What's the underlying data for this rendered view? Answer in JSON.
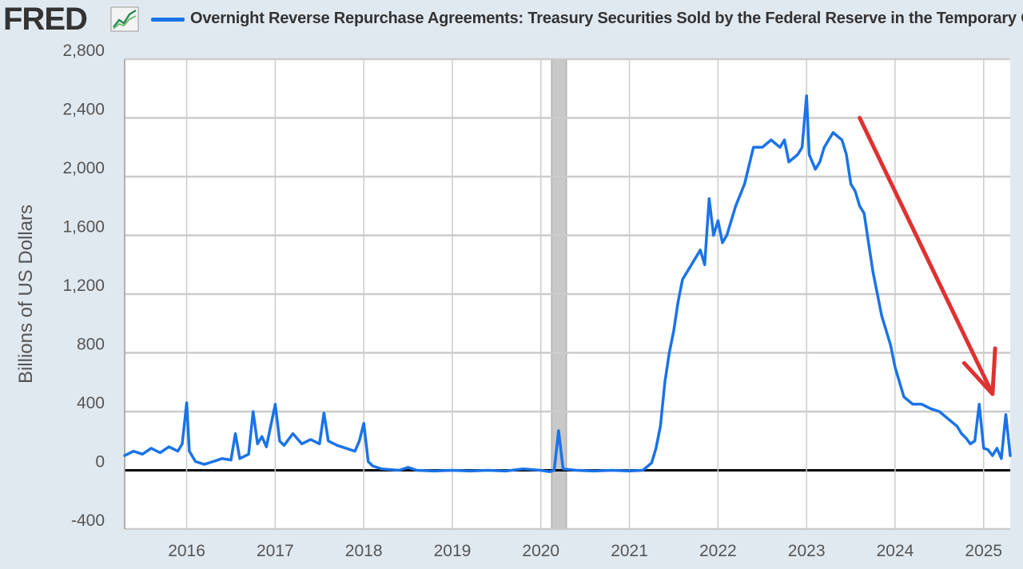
{
  "header": {
    "logo_text": "FRED",
    "logo_icon": "line-chart-icon",
    "title": "Overnight Reverse Repurchase Agreements: Treasury Securities Sold by the Federal Reserve in the Temporary Open Market Operations"
  },
  "colors": {
    "series": "#1a73e8",
    "annotation_arrow": "#e03131",
    "recession_band": "#c8c8c8",
    "gridline": "#cccccc",
    "zero_line": "#000000",
    "plot_background": "#ffffff",
    "page_background": "#e1e9f0"
  },
  "chart_data": {
    "type": "line",
    "title": "Overnight Reverse Repurchase Agreements: Treasury Securities Sold by the Federal Reserve in the Temporary Open Market Operations",
    "ylabel": "Billions of US Dollars",
    "xlabel": "",
    "xlim": [
      2015.3,
      2025.3
    ],
    "ylim": [
      -400,
      2800
    ],
    "x_ticks": [
      "2016",
      "2017",
      "2018",
      "2019",
      "2020",
      "2021",
      "2022",
      "2023",
      "2024",
      "2025"
    ],
    "y_ticks": [
      "2,800",
      "2,400",
      "2,000",
      "1,600",
      "1,200",
      "800",
      "400",
      "0",
      "-400"
    ],
    "grid": true,
    "recession_shading": [
      [
        2020.12,
        2020.29
      ]
    ],
    "annotation": "red downward arrow from mid-2023 to early 2025",
    "series": [
      {
        "values": [
          [
            2015.3,
            100
          ],
          [
            2015.4,
            130
          ],
          [
            2015.5,
            110
          ],
          [
            2015.6,
            150
          ],
          [
            2015.7,
            120
          ],
          [
            2015.8,
            160
          ],
          [
            2015.9,
            130
          ],
          [
            2015.95,
            180
          ],
          [
            2016.0,
            460
          ],
          [
            2016.03,
            130
          ],
          [
            2016.1,
            60
          ],
          [
            2016.2,
            40
          ],
          [
            2016.3,
            60
          ],
          [
            2016.4,
            80
          ],
          [
            2016.5,
            70
          ],
          [
            2016.55,
            250
          ],
          [
            2016.6,
            80
          ],
          [
            2016.7,
            110
          ],
          [
            2016.75,
            400
          ],
          [
            2016.8,
            180
          ],
          [
            2016.85,
            230
          ],
          [
            2016.9,
            160
          ],
          [
            2017.0,
            450
          ],
          [
            2017.05,
            200
          ],
          [
            2017.1,
            170
          ],
          [
            2017.2,
            250
          ],
          [
            2017.3,
            180
          ],
          [
            2017.4,
            210
          ],
          [
            2017.5,
            180
          ],
          [
            2017.55,
            390
          ],
          [
            2017.6,
            200
          ],
          [
            2017.7,
            170
          ],
          [
            2017.8,
            150
          ],
          [
            2017.9,
            130
          ],
          [
            2017.95,
            200
          ],
          [
            2018.0,
            320
          ],
          [
            2018.05,
            60
          ],
          [
            2018.1,
            30
          ],
          [
            2018.2,
            10
          ],
          [
            2018.4,
            0
          ],
          [
            2018.5,
            20
          ],
          [
            2018.6,
            0
          ],
          [
            2018.8,
            -5
          ],
          [
            2019.0,
            0
          ],
          [
            2019.2,
            -5
          ],
          [
            2019.4,
            0
          ],
          [
            2019.6,
            -5
          ],
          [
            2019.8,
            10
          ],
          [
            2020.0,
            0
          ],
          [
            2020.1,
            -10
          ],
          [
            2020.15,
            0
          ],
          [
            2020.2,
            270
          ],
          [
            2020.25,
            10
          ],
          [
            2020.4,
            0
          ],
          [
            2020.6,
            -5
          ],
          [
            2020.8,
            0
          ],
          [
            2021.0,
            -5
          ],
          [
            2021.15,
            0
          ],
          [
            2021.25,
            50
          ],
          [
            2021.3,
            150
          ],
          [
            2021.35,
            300
          ],
          [
            2021.4,
            600
          ],
          [
            2021.45,
            800
          ],
          [
            2021.5,
            950
          ],
          [
            2021.55,
            1150
          ],
          [
            2021.6,
            1300
          ],
          [
            2021.7,
            1400
          ],
          [
            2021.8,
            1500
          ],
          [
            2021.85,
            1400
          ],
          [
            2021.9,
            1850
          ],
          [
            2021.95,
            1600
          ],
          [
            2022.0,
            1700
          ],
          [
            2022.05,
            1550
          ],
          [
            2022.1,
            1600
          ],
          [
            2022.2,
            1800
          ],
          [
            2022.3,
            1950
          ],
          [
            2022.4,
            2200
          ],
          [
            2022.5,
            2200
          ],
          [
            2022.6,
            2250
          ],
          [
            2022.7,
            2200
          ],
          [
            2022.75,
            2250
          ],
          [
            2022.8,
            2100
          ],
          [
            2022.9,
            2150
          ],
          [
            2022.95,
            2200
          ],
          [
            2023.0,
            2550
          ],
          [
            2023.03,
            2150
          ],
          [
            2023.1,
            2050
          ],
          [
            2023.15,
            2100
          ],
          [
            2023.2,
            2200
          ],
          [
            2023.3,
            2300
          ],
          [
            2023.4,
            2250
          ],
          [
            2023.45,
            2150
          ],
          [
            2023.5,
            1950
          ],
          [
            2023.55,
            1900
          ],
          [
            2023.6,
            1800
          ],
          [
            2023.65,
            1750
          ],
          [
            2023.7,
            1550
          ],
          [
            2023.75,
            1350
          ],
          [
            2023.8,
            1200
          ],
          [
            2023.85,
            1050
          ],
          [
            2023.9,
            950
          ],
          [
            2023.95,
            850
          ],
          [
            2024.0,
            700
          ],
          [
            2024.05,
            600
          ],
          [
            2024.1,
            500
          ],
          [
            2024.2,
            450
          ],
          [
            2024.3,
            450
          ],
          [
            2024.4,
            420
          ],
          [
            2024.5,
            400
          ],
          [
            2024.6,
            350
          ],
          [
            2024.7,
            300
          ],
          [
            2024.75,
            250
          ],
          [
            2024.8,
            220
          ],
          [
            2024.85,
            180
          ],
          [
            2024.9,
            200
          ],
          [
            2024.95,
            450
          ],
          [
            2025.0,
            150
          ],
          [
            2025.05,
            140
          ],
          [
            2025.1,
            100
          ],
          [
            2025.15,
            150
          ],
          [
            2025.2,
            80
          ],
          [
            2025.25,
            380
          ],
          [
            2025.3,
            100
          ]
        ]
      }
    ]
  }
}
